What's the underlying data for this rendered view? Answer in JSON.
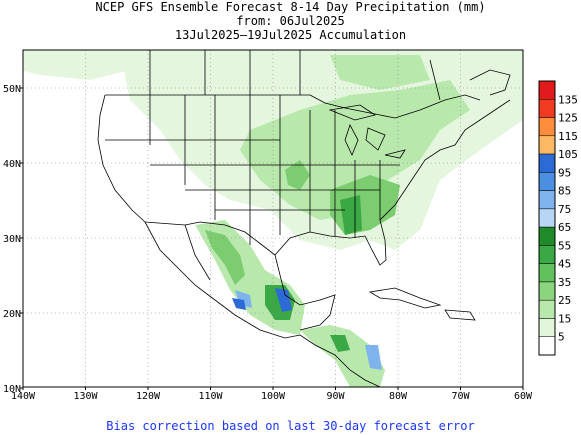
{
  "title": {
    "line1": "NCEP GFS Ensemble Forecast 8-14 Day Precipitation (mm)",
    "line2": "from: 06Jul2025",
    "line3": "13Jul2025–19Jul2025 Accumulation"
  },
  "footer": "Bias correction based on last 30-day forecast error",
  "axes": {
    "lon_labels": [
      "140W",
      "130W",
      "120W",
      "110W",
      "100W",
      "90W",
      "80W",
      "70W",
      "60W"
    ],
    "lat_labels": [
      "50N",
      "40N",
      "30N",
      "20N",
      "10N"
    ]
  },
  "colorbar": {
    "levels": [
      "135",
      "125",
      "115",
      "105",
      "95",
      "85",
      "75",
      "65",
      "55",
      "45",
      "35",
      "25",
      "15",
      "5"
    ],
    "colors": [
      "#e31a1c",
      "#f03b20",
      "#fd8d3c",
      "#fdb863",
      "#2c6bd6",
      "#4a8fe0",
      "#7fb3ec",
      "#b7d5f5",
      "#1f8a2a",
      "#3aa844",
      "#61c15d",
      "#8bd57f",
      "#b8e8ab",
      "#e2f6dc",
      "#ffffff"
    ]
  },
  "palette": {
    "light": "#e4f6de",
    "mid": "#b9e8ad",
    "green": "#7ccc70",
    "dark": "#3aa844",
    "blue": "#7fb3ec",
    "navy": "#2c6bd6"
  }
}
